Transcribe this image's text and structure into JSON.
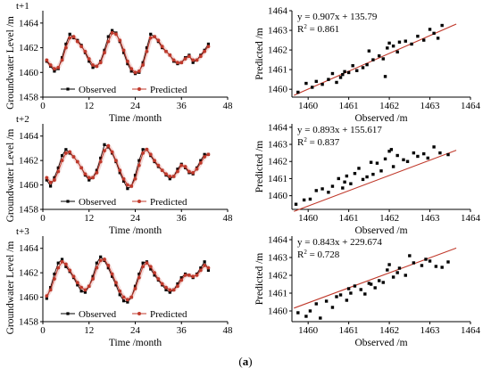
{
  "caption": "(a)",
  "chart_data": [
    {
      "type": "line",
      "panel_label": "t+1",
      "xlabel": "Time /month",
      "ylabel": "Groundwater Level /m",
      "xlim": [
        0,
        48
      ],
      "ylim": [
        1458,
        1465
      ],
      "xticks": [
        "0",
        "12",
        "24",
        "36",
        "48"
      ],
      "yticks": [
        "1458",
        "1460",
        "1462",
        "1464"
      ],
      "legend": "bottom",
      "series": [
        {
          "name": "Observed",
          "color": "#000000",
          "marker": "square",
          "x": [
            1,
            2,
            3,
            4,
            5,
            6,
            7,
            8,
            9,
            10,
            11,
            12,
            13,
            14,
            15,
            16,
            17,
            18,
            19,
            20,
            21,
            22,
            23,
            24,
            25,
            26,
            27,
            28,
            29,
            30,
            31,
            32,
            33,
            34,
            35,
            36,
            37,
            38,
            39,
            40,
            41,
            42,
            43
          ],
          "values": [
            1460.9,
            1460.5,
            1460.1,
            1460.3,
            1461.2,
            1462.3,
            1463.1,
            1462.8,
            1462.6,
            1462.2,
            1461.6,
            1460.9,
            1460.4,
            1460.5,
            1460.9,
            1461.8,
            1462.9,
            1463.4,
            1463.2,
            1462.5,
            1461.6,
            1460.7,
            1460.1,
            1459.9,
            1460.0,
            1460.8,
            1462.0,
            1463.1,
            1462.9,
            1462.5,
            1462.0,
            1461.7,
            1461.4,
            1460.9,
            1460.7,
            1460.8,
            1461.2,
            1461.4,
            1460.8,
            1461.0,
            1461.4,
            1461.8,
            1462.3
          ]
        },
        {
          "name": "Predicted",
          "color": "#c0392b",
          "marker": "circle",
          "x": [
            1,
            2,
            3,
            4,
            5,
            6,
            7,
            8,
            9,
            10,
            11,
            12,
            13,
            14,
            15,
            16,
            17,
            18,
            19,
            20,
            21,
            22,
            23,
            24,
            25,
            26,
            27,
            28,
            29,
            30,
            31,
            32,
            33,
            34,
            35,
            36,
            37,
            38,
            39,
            40,
            41,
            42,
            43
          ],
          "values": [
            1461.0,
            1460.6,
            1460.3,
            1460.4,
            1461.0,
            1462.0,
            1462.8,
            1462.9,
            1462.5,
            1462.1,
            1461.7,
            1461.1,
            1460.6,
            1460.5,
            1460.8,
            1461.6,
            1462.5,
            1463.2,
            1463.1,
            1462.6,
            1461.8,
            1460.9,
            1460.3,
            1460.0,
            1460.1,
            1460.6,
            1461.7,
            1462.8,
            1462.9,
            1462.6,
            1462.1,
            1461.7,
            1461.4,
            1461.0,
            1460.8,
            1460.8,
            1461.1,
            1461.3,
            1461.0,
            1461.0,
            1461.3,
            1461.7,
            1462.1
          ]
        }
      ]
    },
    {
      "type": "line",
      "panel_label": "t+2",
      "xlabel": "Time /month",
      "ylabel": "Groundwater Level /m",
      "xlim": [
        0,
        48
      ],
      "ylim": [
        1458,
        1465
      ],
      "xticks": [
        "0",
        "12",
        "24",
        "36",
        "48"
      ],
      "yticks": [
        "1458",
        "1460",
        "1462",
        "1464"
      ],
      "legend": "bottom",
      "series": [
        {
          "name": "Observed",
          "color": "#000000",
          "marker": "square",
          "x": [
            1,
            2,
            3,
            4,
            5,
            6,
            7,
            8,
            9,
            10,
            11,
            12,
            13,
            14,
            15,
            16,
            17,
            18,
            19,
            20,
            21,
            22,
            23,
            24,
            25,
            26,
            27,
            28,
            29,
            30,
            31,
            32,
            33,
            34,
            35,
            36,
            37,
            38,
            39,
            40,
            41,
            42,
            43
          ],
          "values": [
            1460.4,
            1459.9,
            1460.6,
            1461.4,
            1462.4,
            1462.9,
            1462.6,
            1462.3,
            1461.9,
            1461.4,
            1460.8,
            1460.4,
            1460.6,
            1461.2,
            1462.2,
            1463.3,
            1463.1,
            1462.6,
            1461.9,
            1461.0,
            1460.3,
            1459.7,
            1459.9,
            1460.8,
            1462.0,
            1462.9,
            1462.9,
            1462.4,
            1461.9,
            1461.5,
            1461.2,
            1460.8,
            1460.5,
            1460.7,
            1461.3,
            1461.7,
            1461.4,
            1461.0,
            1460.9,
            1461.4,
            1462.0,
            1462.5,
            1462.5
          ]
        },
        {
          "name": "Predicted",
          "color": "#c0392b",
          "marker": "circle",
          "x": [
            1,
            2,
            3,
            4,
            5,
            6,
            7,
            8,
            9,
            10,
            11,
            12,
            13,
            14,
            15,
            16,
            17,
            18,
            19,
            20,
            21,
            22,
            23,
            24,
            25,
            26,
            27,
            28,
            29,
            30,
            31,
            32,
            33,
            34,
            35,
            36,
            37,
            38,
            39,
            40,
            41,
            42,
            43
          ],
          "values": [
            1460.6,
            1460.2,
            1460.4,
            1461.1,
            1462.0,
            1462.6,
            1462.7,
            1462.3,
            1461.9,
            1461.4,
            1460.9,
            1460.6,
            1460.6,
            1461.0,
            1461.9,
            1462.8,
            1463.2,
            1462.7,
            1462.0,
            1461.2,
            1460.5,
            1460.0,
            1459.9,
            1460.5,
            1461.6,
            1462.6,
            1462.9,
            1462.5,
            1462.0,
            1461.6,
            1461.2,
            1460.9,
            1460.7,
            1460.7,
            1461.1,
            1461.6,
            1461.5,
            1461.1,
            1461.0,
            1461.3,
            1461.8,
            1462.3,
            1462.5
          ]
        }
      ]
    },
    {
      "type": "line",
      "panel_label": "t+3",
      "xlabel": "Time /month",
      "ylabel": "Groundwater Level /m",
      "xlim": [
        0,
        48
      ],
      "ylim": [
        1458,
        1465
      ],
      "xticks": [
        "0",
        "12",
        "24",
        "36",
        "48"
      ],
      "yticks": [
        "1458",
        "1460",
        "1462",
        "1464"
      ],
      "legend": "bottom",
      "series": [
        {
          "name": "Observed",
          "color": "#000000",
          "marker": "square",
          "x": [
            1,
            2,
            3,
            4,
            5,
            6,
            7,
            8,
            9,
            10,
            11,
            12,
            13,
            14,
            15,
            16,
            17,
            18,
            19,
            20,
            21,
            22,
            23,
            24,
            25,
            26,
            27,
            28,
            29,
            30,
            31,
            32,
            33,
            34,
            35,
            36,
            37,
            38,
            39,
            40,
            41,
            42,
            43
          ],
          "values": [
            1459.9,
            1460.8,
            1461.9,
            1462.8,
            1463.1,
            1462.5,
            1462.1,
            1461.6,
            1461.0,
            1460.5,
            1460.4,
            1460.9,
            1461.7,
            1462.8,
            1463.3,
            1463.0,
            1462.4,
            1461.7,
            1461.0,
            1460.2,
            1459.7,
            1459.6,
            1460.0,
            1460.9,
            1461.9,
            1462.8,
            1462.9,
            1462.3,
            1461.8,
            1461.4,
            1461.0,
            1460.6,
            1460.4,
            1460.6,
            1461.1,
            1461.6,
            1461.9,
            1461.8,
            1461.6,
            1461.9,
            1462.4,
            1462.9,
            1462.2
          ]
        },
        {
          "name": "Predicted",
          "color": "#c0392b",
          "marker": "circle",
          "x": [
            1,
            2,
            3,
            4,
            5,
            6,
            7,
            8,
            9,
            10,
            11,
            12,
            13,
            14,
            15,
            16,
            17,
            18,
            19,
            20,
            21,
            22,
            23,
            24,
            25,
            26,
            27,
            28,
            29,
            30,
            31,
            32,
            33,
            34,
            35,
            36,
            37,
            38,
            39,
            40,
            41,
            42,
            43
          ],
          "values": [
            1460.1,
            1460.6,
            1461.5,
            1462.4,
            1462.9,
            1462.7,
            1462.2,
            1461.7,
            1461.2,
            1460.8,
            1460.6,
            1460.9,
            1461.5,
            1462.4,
            1463.0,
            1463.1,
            1462.6,
            1461.9,
            1461.2,
            1460.5,
            1460.0,
            1459.8,
            1460.0,
            1460.7,
            1461.6,
            1462.5,
            1462.8,
            1462.5,
            1462.0,
            1461.5,
            1461.1,
            1460.8,
            1460.6,
            1460.6,
            1460.9,
            1461.4,
            1461.8,
            1461.8,
            1461.7,
            1461.8,
            1462.2,
            1462.6,
            1462.4
          ]
        }
      ]
    },
    {
      "type": "scatter",
      "equation": "y = 0.907x + 135.79",
      "r2_prefix": "R",
      "r2_sup": "2",
      "r2_value": " = 0.861",
      "xlabel": "Observed /m",
      "ylabel": "Predicted /m",
      "xlim": [
        1459.6,
        1464
      ],
      "ylim": [
        1459.6,
        1464
      ],
      "xticks": [
        "1460",
        "1461",
        "1462",
        "1463",
        "1464"
      ],
      "yticks": [
        "1460",
        "1461",
        "1462",
        "1463",
        "1464"
      ],
      "fit": {
        "slope": 0.907,
        "intercept": 135.79,
        "color": "#c0392b"
      },
      "x": [
        1459.75,
        1459.95,
        1460.1,
        1460.2,
        1460.35,
        1460.5,
        1460.7,
        1460.6,
        1460.8,
        1460.9,
        1460.85,
        1461.0,
        1461.1,
        1461.2,
        1461.35,
        1461.45,
        1461.6,
        1461.75,
        1461.85,
        1461.95,
        1462.0,
        1462.1,
        1462.2,
        1462.25,
        1462.4,
        1462.55,
        1462.7,
        1462.85,
        1463.0,
        1463.1,
        1463.2,
        1463.3,
        1461.9,
        1461.5
      ],
      "y": [
        1459.85,
        1460.3,
        1460.1,
        1460.4,
        1460.25,
        1460.5,
        1460.35,
        1460.8,
        1460.6,
        1460.9,
        1460.75,
        1460.85,
        1461.2,
        1460.95,
        1461.1,
        1461.25,
        1461.5,
        1461.7,
        1461.55,
        1462.1,
        1462.35,
        1462.2,
        1461.9,
        1462.4,
        1462.45,
        1462.3,
        1462.7,
        1462.5,
        1463.05,
        1462.85,
        1462.6,
        1463.25,
        1460.65,
        1461.95
      ]
    },
    {
      "type": "scatter",
      "equation": "y = 0.893x + 155.617",
      "r2_prefix": "R",
      "r2_sup": "2",
      "r2_value": " = 0.837",
      "xlabel": "Observed /m",
      "ylabel": "Predicted /m",
      "xlim": [
        1459.6,
        1464
      ],
      "ylim": [
        1459.2,
        1464.2
      ],
      "xticks": [
        "1460",
        "1461",
        "1462",
        "1463",
        "1464"
      ],
      "yticks": [
        "1460",
        "1461",
        "1462",
        "1463",
        "1464"
      ],
      "fit": {
        "slope": 0.893,
        "intercept": 155.617,
        "color": "#c0392b"
      },
      "x": [
        1459.7,
        1459.9,
        1460.05,
        1460.2,
        1460.35,
        1460.5,
        1460.6,
        1460.75,
        1460.85,
        1460.9,
        1461.05,
        1461.15,
        1461.25,
        1461.35,
        1461.45,
        1461.6,
        1461.7,
        1461.8,
        1461.9,
        1462.0,
        1462.1,
        1462.2,
        1462.35,
        1462.45,
        1462.6,
        1462.7,
        1462.85,
        1462.95,
        1463.1,
        1463.25,
        1463.45,
        1461.55,
        1462.05,
        1460.95
      ],
      "y": [
        1459.5,
        1459.75,
        1459.8,
        1460.3,
        1460.4,
        1460.2,
        1460.55,
        1461.0,
        1460.45,
        1460.8,
        1460.7,
        1461.3,
        1461.6,
        1460.95,
        1461.1,
        1461.25,
        1461.9,
        1461.45,
        1462.15,
        1462.6,
        1461.7,
        1462.35,
        1462.1,
        1462.0,
        1462.5,
        1462.3,
        1462.45,
        1462.2,
        1462.85,
        1462.5,
        1462.4,
        1461.95,
        1462.7,
        1461.15
      ]
    },
    {
      "type": "scatter",
      "equation": "y = 0.843x + 229.674",
      "r2_prefix": "R",
      "r2_sup": "2",
      "r2_value": " = 0.728",
      "xlabel": "Observed /m",
      "ylabel": "Predicted /m",
      "xlim": [
        1459.6,
        1464
      ],
      "ylim": [
        1459.4,
        1464.2
      ],
      "xticks": [
        "1460",
        "1461",
        "1462",
        "1463",
        "1464"
      ],
      "yticks": [
        "1460",
        "1461",
        "1462",
        "1463",
        "1464"
      ],
      "fit": {
        "slope": 0.843,
        "intercept": 229.674,
        "color": "#c0392b"
      },
      "x": [
        1459.75,
        1459.95,
        1460.05,
        1460.2,
        1460.3,
        1460.45,
        1460.6,
        1460.7,
        1460.8,
        1460.95,
        1461.05,
        1461.15,
        1461.3,
        1461.4,
        1461.55,
        1461.65,
        1461.75,
        1461.85,
        1461.95,
        1462.0,
        1462.1,
        1462.25,
        1462.4,
        1462.5,
        1462.6,
        1462.8,
        1462.9,
        1463.0,
        1463.15,
        1463.3,
        1463.45,
        1461.0,
        1461.5,
        1462.2
      ],
      "y": [
        1459.9,
        1459.7,
        1460.0,
        1460.4,
        1459.6,
        1460.55,
        1460.2,
        1460.8,
        1460.9,
        1460.6,
        1461.0,
        1461.4,
        1461.2,
        1460.95,
        1461.5,
        1461.3,
        1461.7,
        1461.6,
        1462.3,
        1462.6,
        1461.9,
        1462.4,
        1462.0,
        1463.1,
        1462.7,
        1462.55,
        1462.9,
        1462.8,
        1462.5,
        1462.45,
        1462.75,
        1461.25,
        1461.55,
        1462.15
      ]
    }
  ]
}
